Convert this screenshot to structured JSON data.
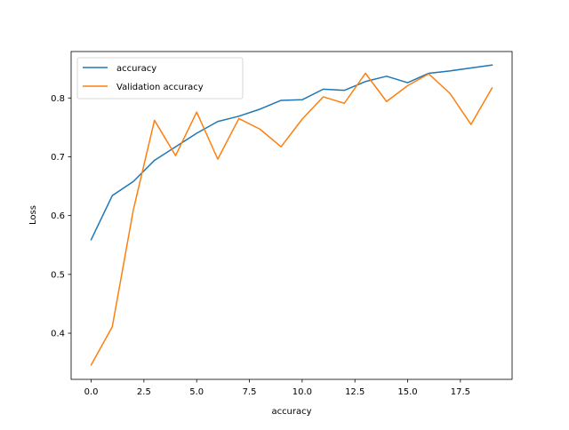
{
  "chart_data": {
    "type": "line",
    "title": "",
    "xlabel": "accuracy",
    "ylabel": "Loss",
    "xlim": [
      -0.95,
      19.95
    ],
    "ylim": [
      0.3215,
      0.879
    ],
    "x_ticks": [
      0.0,
      2.5,
      5.0,
      7.5,
      10.0,
      12.5,
      15.0,
      17.5
    ],
    "x_tick_labels": [
      "0.0",
      "2.5",
      "5.0",
      "7.5",
      "10.0",
      "12.5",
      "15.0",
      "17.5"
    ],
    "y_ticks": [
      0.4,
      0.5,
      0.6,
      0.7,
      0.8
    ],
    "y_tick_labels": [
      "0.4",
      "0.5",
      "0.6",
      "0.7",
      "0.8"
    ],
    "grid": false,
    "legend_position": "upper-left",
    "x": [
      0,
      1,
      2,
      3,
      4,
      5,
      6,
      7,
      8,
      9,
      10,
      11,
      12,
      13,
      14,
      15,
      16,
      17,
      18,
      19
    ],
    "series": [
      {
        "name": "accuracy",
        "color": "#1f77b4",
        "values": [
          0.559,
          0.634,
          0.658,
          0.694,
          0.717,
          0.74,
          0.76,
          0.769,
          0.781,
          0.796,
          0.797,
          0.815,
          0.813,
          0.828,
          0.837,
          0.826,
          0.842,
          0.846,
          0.851,
          0.856
        ]
      },
      {
        "name": "Validation accuracy",
        "color": "#ff7f0e",
        "values": [
          0.346,
          0.411,
          0.61,
          0.762,
          0.702,
          0.776,
          0.696,
          0.765,
          0.747,
          0.717,
          0.764,
          0.802,
          0.791,
          0.842,
          0.794,
          0.821,
          0.841,
          0.808,
          0.755,
          0.817
        ]
      }
    ]
  }
}
